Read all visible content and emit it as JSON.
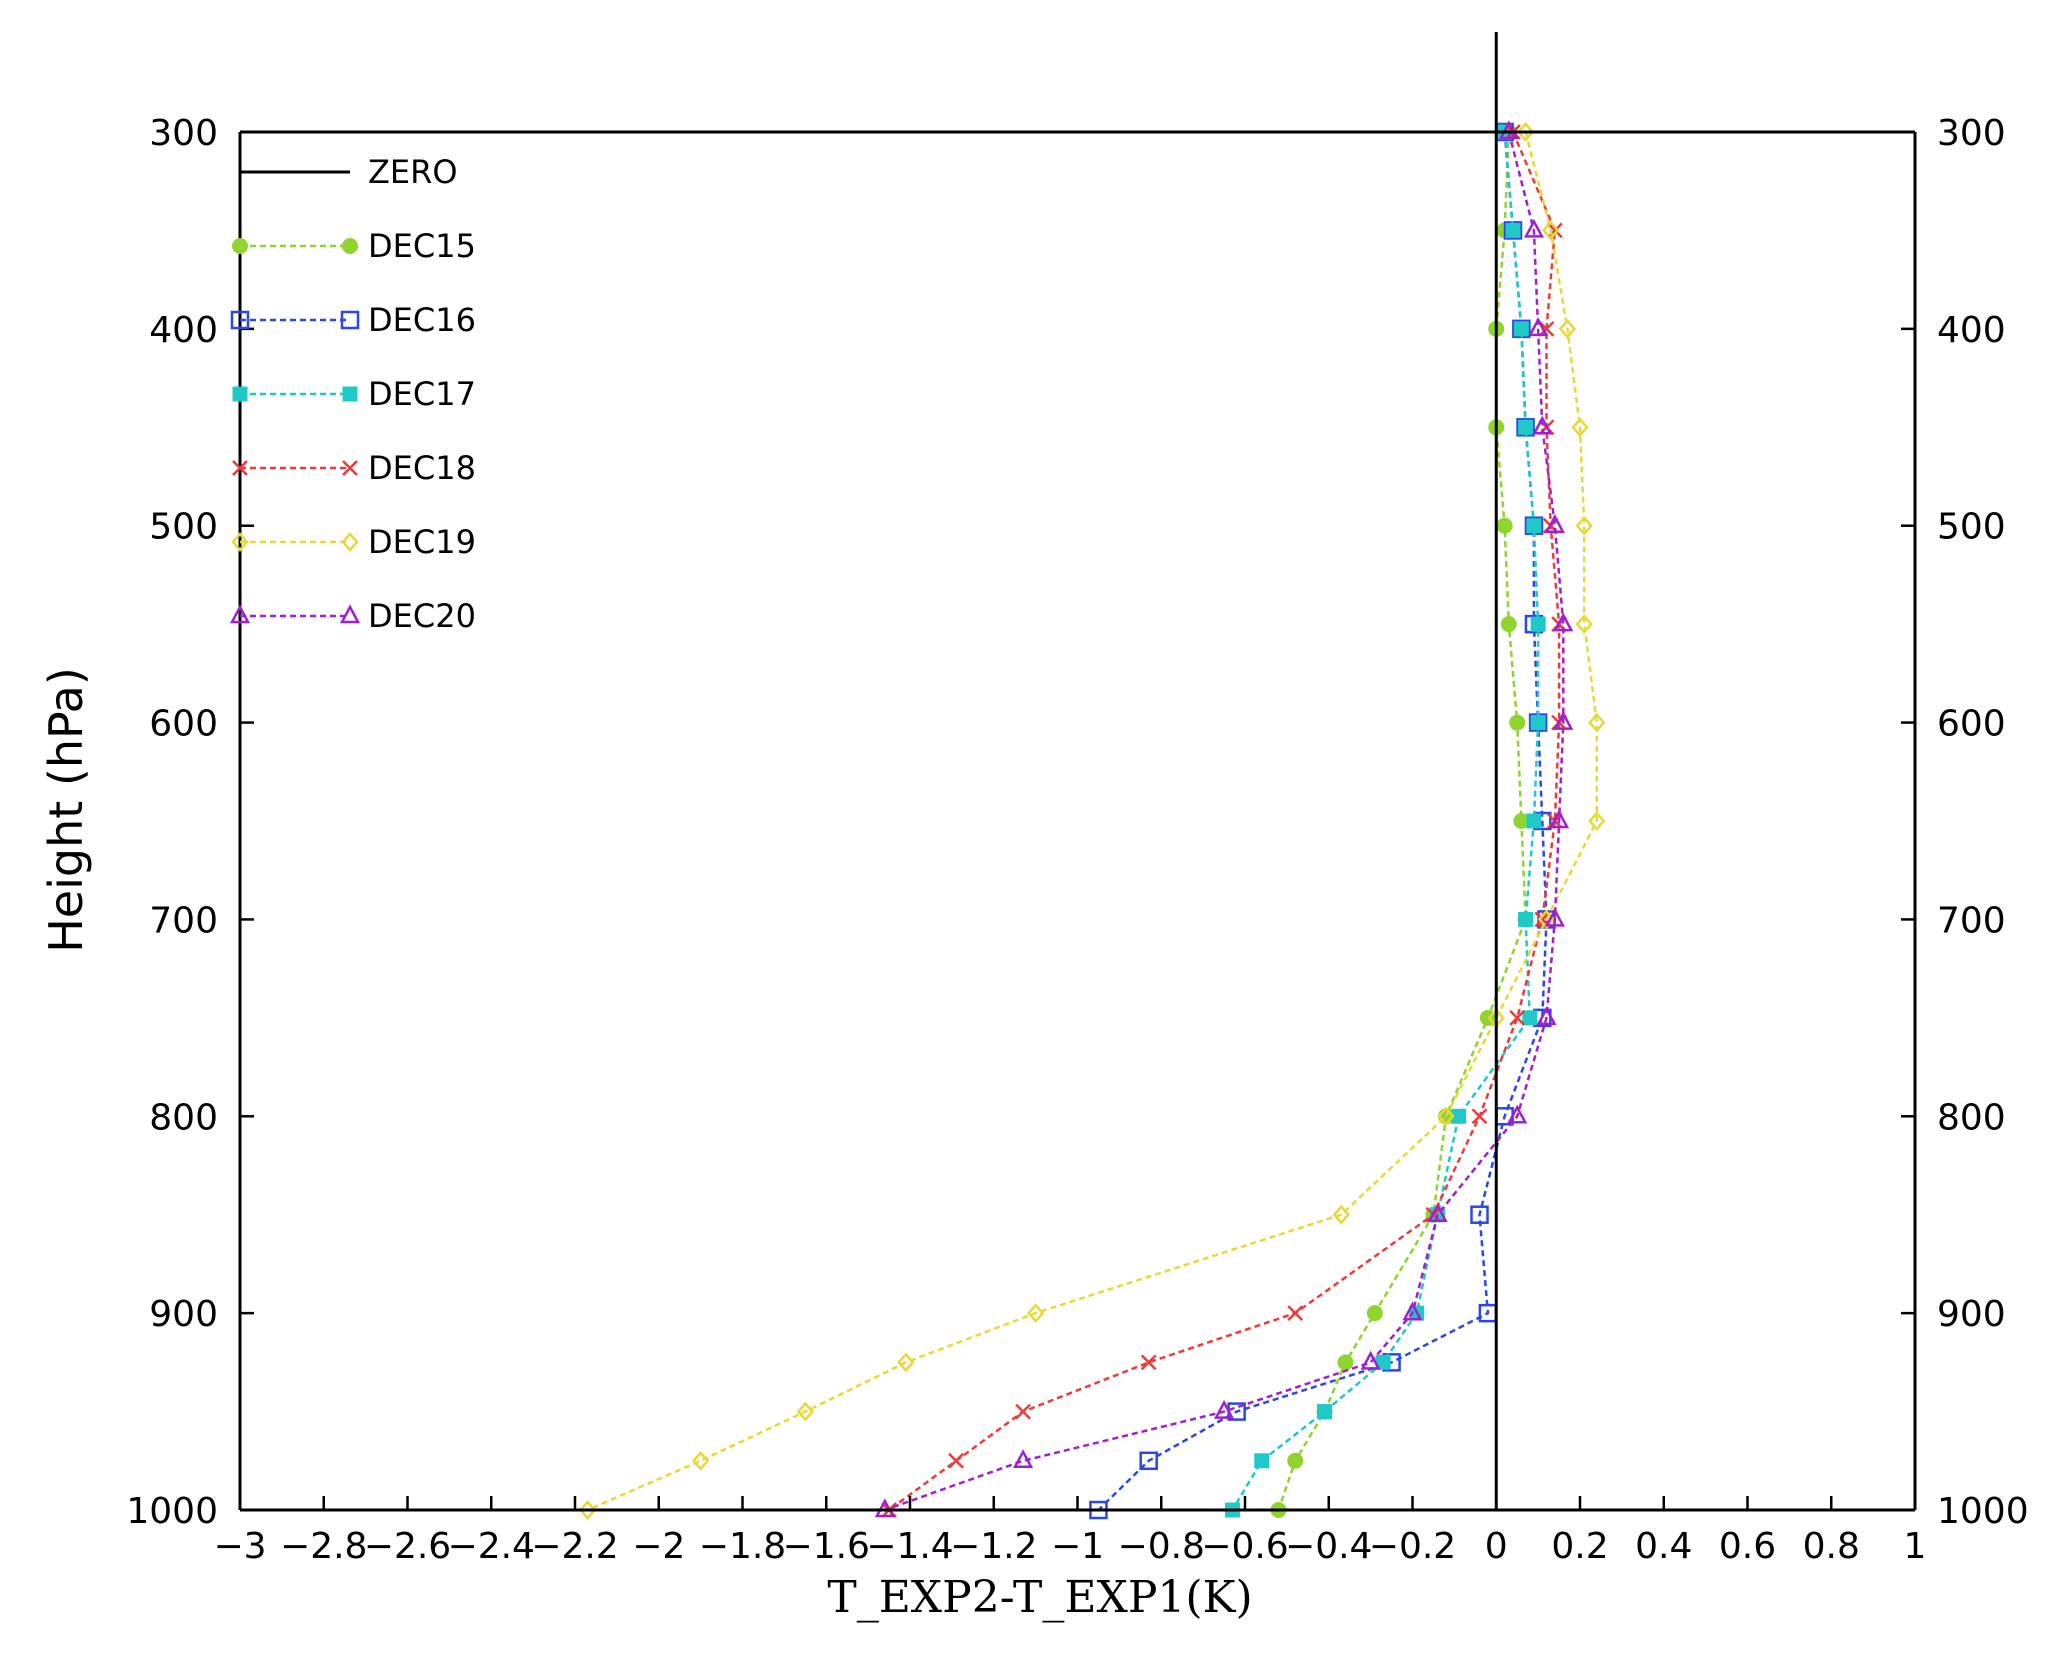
{
  "chart_data": {
    "type": "line",
    "xlabel": "T_EXP2-T_EXP1(K)",
    "ylabel": "Height (hPa)",
    "xlim": [
      -3,
      1
    ],
    "ylim": [
      1000,
      300
    ],
    "x_ticks": [
      -3,
      -2.8,
      -2.6,
      -2.4,
      -2.2,
      -2,
      -1.8,
      -1.6,
      -1.4,
      -1.2,
      -1,
      -0.8,
      -0.6,
      -0.4,
      -0.2,
      0,
      0.2,
      0.4,
      0.6,
      0.8,
      1
    ],
    "x_tick_labels": [
      "−3",
      "−2.8",
      "−2.6",
      "−2.4",
      "−2.2",
      "−2",
      "−1.8",
      "−1.6",
      "−1.4",
      "−1.2",
      "−1",
      "−0.8",
      "−0.6",
      "−0.4",
      "−0.2",
      "0",
      "0.2",
      "0.4",
      "0.6",
      "0.8",
      "1"
    ],
    "y_ticks": [
      300,
      400,
      500,
      600,
      700,
      800,
      900,
      1000
    ],
    "y_tick_labels": [
      "300",
      "400",
      "500",
      "600",
      "700",
      "800",
      "900",
      "1000"
    ],
    "legend_position": "top-left",
    "grid": false,
    "levels": [
      300,
      350,
      400,
      450,
      500,
      550,
      600,
      650,
      700,
      750,
      800,
      850,
      900,
      925,
      950,
      975,
      1000
    ],
    "zero_line": {
      "name": "ZERO",
      "color": "#000000"
    },
    "series": [
      {
        "name": "DEC15",
        "color": "#8fd42f",
        "marker": "filled-circle",
        "values": [
          0.03,
          0.02,
          0.0,
          0.0,
          0.02,
          0.03,
          0.05,
          0.06,
          0.07,
          -0.02,
          -0.12,
          -0.15,
          -0.29,
          -0.36,
          -0.41,
          -0.48,
          -0.52
        ]
      },
      {
        "name": "DEC16",
        "color": "#2a48e6",
        "marker": "open-square",
        "values": [
          0.02,
          0.04,
          0.06,
          0.07,
          0.09,
          0.09,
          0.1,
          0.11,
          0.12,
          0.11,
          0.02,
          -0.04,
          -0.02,
          -0.25,
          -0.62,
          -0.83,
          -0.95
        ]
      },
      {
        "name": "DEC17",
        "color": "#20c8c8",
        "marker": "filled-square",
        "values": [
          0.02,
          0.04,
          0.06,
          0.07,
          0.09,
          0.1,
          0.1,
          0.09,
          0.07,
          0.08,
          -0.09,
          -0.14,
          -0.19,
          -0.27,
          -0.41,
          -0.56,
          -0.63
        ]
      },
      {
        "name": "DEC18",
        "color": "#ee3a3a",
        "marker": "cross",
        "values": [
          0.04,
          0.14,
          0.12,
          0.12,
          0.13,
          0.15,
          0.15,
          0.14,
          0.11,
          0.05,
          -0.04,
          -0.15,
          -0.48,
          -0.83,
          -1.13,
          -1.29,
          -1.45
        ]
      },
      {
        "name": "DEC19",
        "color": "#e8d838",
        "marker": "open-diamond",
        "values": [
          0.07,
          0.13,
          0.17,
          0.2,
          0.21,
          0.21,
          0.24,
          0.24,
          0.12,
          0.0,
          -0.12,
          -0.37,
          -1.1,
          -1.41,
          -1.65,
          -1.9,
          -2.17
        ]
      },
      {
        "name": "DEC20",
        "color": "#a020d0",
        "marker": "open-triangle",
        "values": [
          0.03,
          0.09,
          0.1,
          0.11,
          0.14,
          0.16,
          0.16,
          0.15,
          0.14,
          0.12,
          0.05,
          -0.14,
          -0.2,
          -0.3,
          -0.65,
          -1.13,
          -1.46
        ]
      }
    ]
  }
}
